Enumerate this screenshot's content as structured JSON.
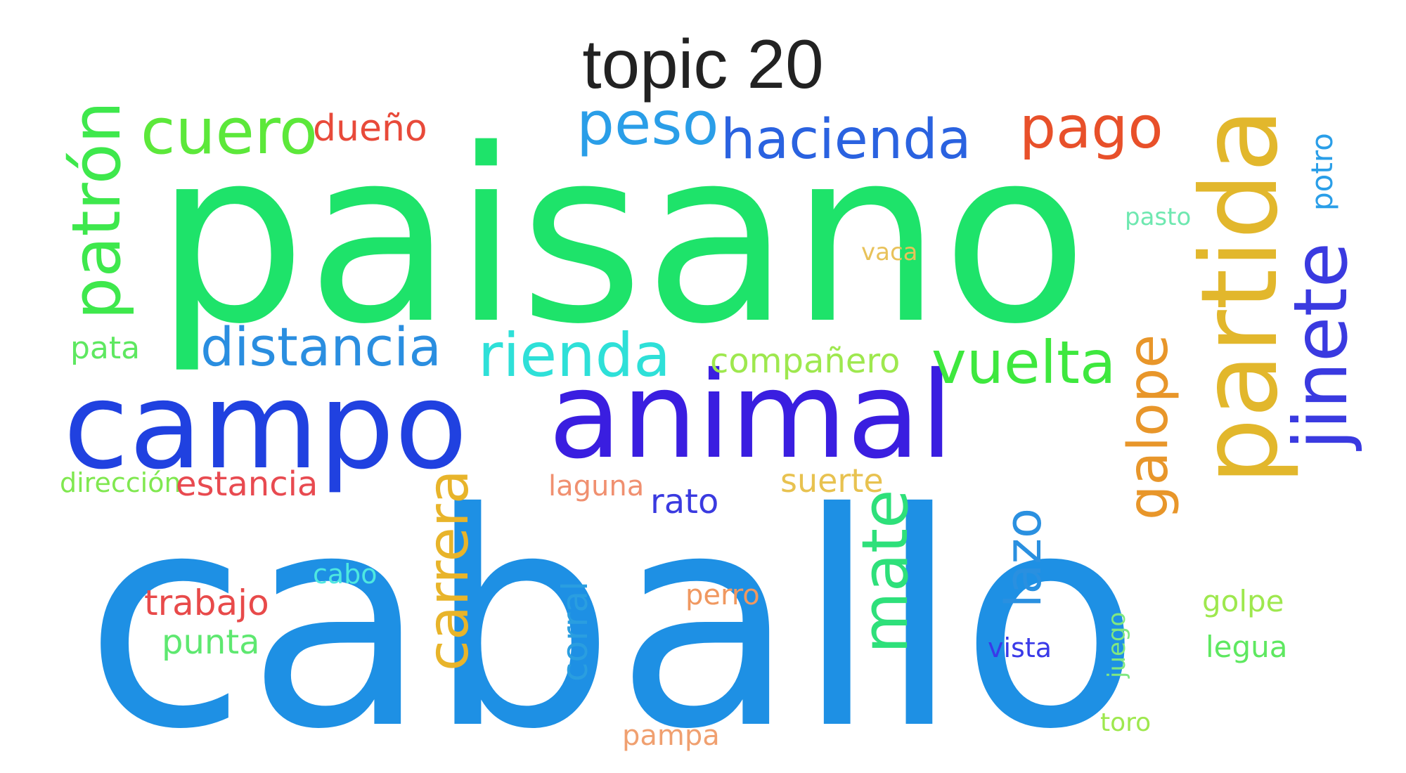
{
  "title": "topic 20",
  "words": [
    {
      "text": "caballo",
      "color": "#1e90e4"
    },
    {
      "text": "paisano",
      "color": "#1ee36a"
    },
    {
      "text": "campo",
      "color": "#2041e0"
    },
    {
      "text": "animal",
      "color": "#3a1ee0"
    },
    {
      "text": "partida",
      "color": "#e2b72c"
    },
    {
      "text": "jinete",
      "color": "#3a3ae0"
    },
    {
      "text": "patrón",
      "color": "#3ee84c"
    },
    {
      "text": "cuero",
      "color": "#5ce83a"
    },
    {
      "text": "dueño",
      "color": "#e84a3a"
    },
    {
      "text": "peso",
      "color": "#2a9ee8"
    },
    {
      "text": "hacienda",
      "color": "#2a62e0"
    },
    {
      "text": "pago",
      "color": "#e8502a"
    },
    {
      "text": "potro",
      "color": "#2a9ee8"
    },
    {
      "text": "pasto",
      "color": "#6ee8b0"
    },
    {
      "text": "vaca",
      "color": "#e8c25a"
    },
    {
      "text": "pata",
      "color": "#5ee860"
    },
    {
      "text": "distancia",
      "color": "#2a8ee0"
    },
    {
      "text": "rienda",
      "color": "#2ee0d8"
    },
    {
      "text": "compañero",
      "color": "#9ee84e"
    },
    {
      "text": "vuelta",
      "color": "#3ee83e"
    },
    {
      "text": "galope",
      "color": "#e8962a"
    },
    {
      "text": "dirección",
      "color": "#80e850"
    },
    {
      "text": "estancia",
      "color": "#e84a50"
    },
    {
      "text": "laguna",
      "color": "#f09070"
    },
    {
      "text": "rato",
      "color": "#3a3ae0"
    },
    {
      "text": "suerte",
      "color": "#e8c250"
    },
    {
      "text": "carrera",
      "color": "#e8b42a"
    },
    {
      "text": "mate",
      "color": "#2ee07a"
    },
    {
      "text": "lazo",
      "color": "#2a90e0"
    },
    {
      "text": "cabo",
      "color": "#4ee8e0"
    },
    {
      "text": "trabajo",
      "color": "#e84a4a"
    },
    {
      "text": "punta",
      "color": "#5ee870"
    },
    {
      "text": "perro",
      "color": "#f09860"
    },
    {
      "text": "corral",
      "color": "#2a9ee0"
    },
    {
      "text": "vista",
      "color": "#3a3ae8"
    },
    {
      "text": "juego",
      "color": "#80e880"
    },
    {
      "text": "golpe",
      "color": "#9ee84e"
    },
    {
      "text": "legua",
      "color": "#5ee860"
    },
    {
      "text": "pampa",
      "color": "#f0a070"
    },
    {
      "text": "toro",
      "color": "#9ee84e"
    }
  ]
}
